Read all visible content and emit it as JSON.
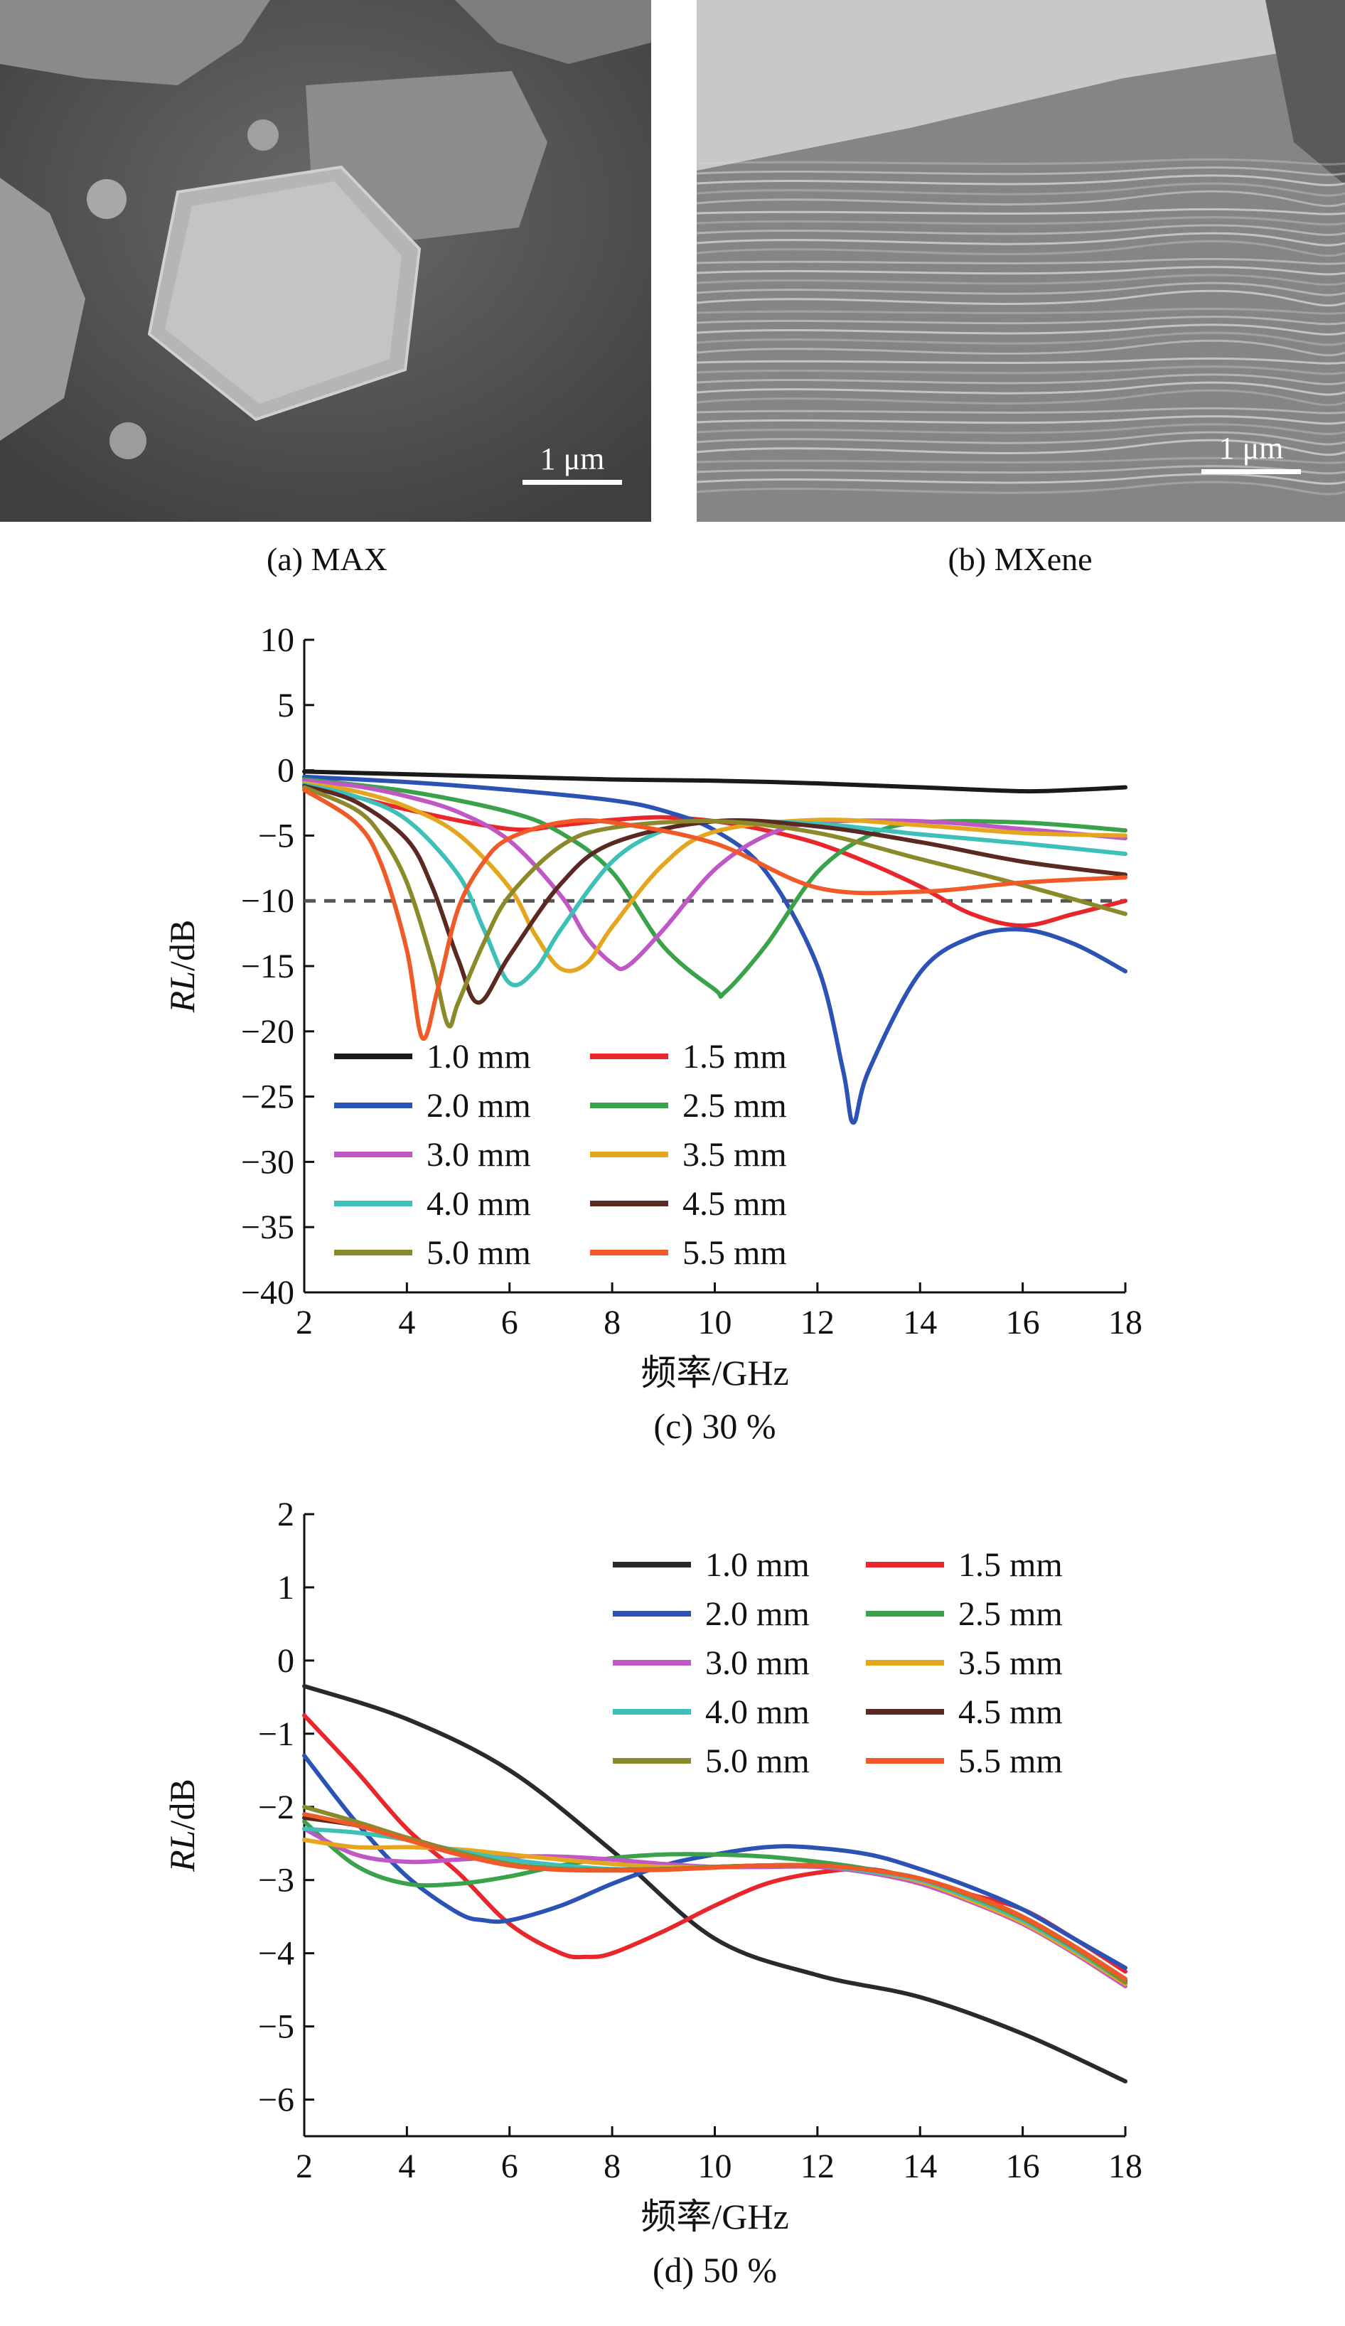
{
  "panels": {
    "a": {
      "caption": "(a) MAX",
      "scale_label": "1 μm"
    },
    "b": {
      "caption": "(b) MXene",
      "scale_label": "1 μm"
    }
  },
  "chart_data": [
    {
      "type": "line",
      "caption": "(c) 30 %",
      "xlabel": "频率/GHz",
      "ylabel_italic": "RL",
      "ylabel_unit": "/dB",
      "xlim": [
        2,
        18
      ],
      "ylim": [
        -40,
        10
      ],
      "xticks": [
        2,
        4,
        6,
        8,
        10,
        12,
        14,
        16,
        18
      ],
      "yticks": [
        10,
        5,
        0,
        -5,
        -10,
        -15,
        -20,
        -25,
        -30,
        -35,
        -40
      ],
      "ytick_labels": [
        "10",
        "5",
        "0",
        "−5",
        "−10",
        "−15",
        "−20",
        "−25",
        "−30",
        "−35",
        "−40"
      ],
      "reference_line": {
        "y": -10,
        "style": "dashed",
        "color": "#555555"
      },
      "legend_position": "bottom-left",
      "series": [
        {
          "name": "1.0 mm",
          "color": "#1a1a1a",
          "x": [
            2,
            4,
            6,
            8,
            10,
            12,
            14,
            16,
            17,
            18
          ],
          "y": [
            -0.1,
            -0.3,
            -0.5,
            -0.7,
            -0.8,
            -1.0,
            -1.3,
            -1.6,
            -1.5,
            -1.3
          ]
        },
        {
          "name": "1.5 mm",
          "color": "#e8262b",
          "x": [
            2,
            4,
            6,
            7,
            8,
            9,
            10,
            11,
            12,
            13,
            14,
            15,
            16,
            17,
            18
          ],
          "y": [
            -1.0,
            -3.0,
            -4.5,
            -4.2,
            -3.8,
            -3.6,
            -3.9,
            -4.6,
            -5.6,
            -7.1,
            -8.9,
            -11.0,
            -11.9,
            -11.0,
            -10.0
          ]
        },
        {
          "name": "2.0 mm",
          "color": "#2b52b5",
          "x": [
            2,
            4,
            6,
            8,
            9,
            10,
            11,
            12,
            12.5,
            12.7,
            13,
            14,
            15,
            16,
            17,
            18
          ],
          "y": [
            -0.5,
            -0.9,
            -1.5,
            -2.3,
            -3.1,
            -4.6,
            -7.8,
            -15.0,
            -23.0,
            -27.0,
            -23.0,
            -15.5,
            -12.8,
            -12.2,
            -13.3,
            -15.4
          ]
        },
        {
          "name": "2.5 mm",
          "color": "#3aa24a",
          "x": [
            2,
            4,
            6,
            7,
            8,
            9,
            10,
            10.2,
            11,
            12,
            13,
            14,
            16,
            18
          ],
          "y": [
            -0.7,
            -1.6,
            -3.2,
            -4.8,
            -7.8,
            -13.5,
            -16.8,
            -17.0,
            -13.4,
            -7.8,
            -5.0,
            -4.0,
            -4.0,
            -4.6
          ]
        },
        {
          "name": "3.0 mm",
          "color": "#bf58c4",
          "x": [
            2,
            3,
            4,
            5,
            6,
            7,
            7.5,
            8,
            8.3,
            9,
            10,
            11,
            12,
            14,
            16,
            18
          ],
          "y": [
            -0.8,
            -1.2,
            -2.0,
            -3.2,
            -5.4,
            -9.6,
            -12.8,
            -14.8,
            -15.0,
            -12.2,
            -7.6,
            -5.0,
            -4.0,
            -3.9,
            -4.5,
            -5.2
          ]
        },
        {
          "name": "3.5 mm",
          "color": "#e5a61f",
          "x": [
            2,
            3,
            4,
            5,
            6,
            6.5,
            7,
            7.5,
            8,
            9,
            10,
            12,
            14,
            16,
            18
          ],
          "y": [
            -1.0,
            -1.6,
            -2.8,
            -4.9,
            -9.0,
            -12.6,
            -15.2,
            -14.8,
            -12.0,
            -7.2,
            -4.7,
            -3.8,
            -4.2,
            -4.8,
            -5.0
          ]
        },
        {
          "name": "4.0 mm",
          "color": "#3cc0b8",
          "x": [
            2,
            3,
            4,
            5,
            5.5,
            6,
            6.5,
            7,
            8,
            9,
            10,
            12,
            14,
            16,
            18
          ],
          "y": [
            -1.1,
            -2.0,
            -3.8,
            -8.0,
            -12.2,
            -16.3,
            -15.3,
            -12.2,
            -7.0,
            -4.6,
            -3.9,
            -4.1,
            -4.9,
            -5.6,
            -6.4
          ]
        },
        {
          "name": "4.5 mm",
          "color": "#5a2a22",
          "x": [
            2,
            3,
            4,
            4.5,
            5,
            5.4,
            6,
            7,
            8,
            10,
            12,
            14,
            16,
            18
          ],
          "y": [
            -1.2,
            -2.4,
            -5.3,
            -9.0,
            -14.5,
            -17.8,
            -14.2,
            -8.7,
            -5.6,
            -3.9,
            -4.3,
            -5.5,
            -7.0,
            -8.0
          ]
        },
        {
          "name": "5.0 mm",
          "color": "#8a8a2b",
          "x": [
            2,
            3,
            3.5,
            4,
            4.5,
            4.8,
            5,
            5.5,
            6,
            7,
            8,
            10,
            12,
            14,
            16,
            18
          ],
          "y": [
            -1.3,
            -3.0,
            -5.0,
            -8.6,
            -14.8,
            -19.5,
            -17.8,
            -13.2,
            -9.6,
            -5.8,
            -4.4,
            -3.9,
            -4.8,
            -6.8,
            -8.8,
            -11.0
          ]
        },
        {
          "name": "5.5 mm",
          "color": "#f05a28",
          "x": [
            2,
            3,
            3.5,
            4,
            4.3,
            4.6,
            5,
            5.5,
            6,
            7,
            8,
            10,
            12,
            14,
            16,
            18
          ],
          "y": [
            -1.5,
            -4.0,
            -7.2,
            -13.8,
            -20.5,
            -16.8,
            -10.6,
            -7.0,
            -5.2,
            -4.0,
            -4.0,
            -5.6,
            -9.0,
            -9.3,
            -8.6,
            -8.2
          ]
        }
      ]
    },
    {
      "type": "line",
      "caption": "(d) 50 %",
      "xlabel": "频率/GHz",
      "ylabel_italic": "RL",
      "ylabel_unit": "/dB",
      "xlim": [
        2,
        18
      ],
      "ylim": [
        -6.5,
        2
      ],
      "xticks": [
        2,
        4,
        6,
        8,
        10,
        12,
        14,
        16,
        18
      ],
      "yticks": [
        2,
        1,
        0,
        -1,
        -2,
        -3,
        -4,
        -5,
        -6
      ],
      "ytick_labels": [
        "2",
        "1",
        "0",
        "−1",
        "−2",
        "−3",
        "−4",
        "−5",
        "−6"
      ],
      "legend_position": "top-right",
      "series": [
        {
          "name": "1.0 mm",
          "color": "#2a2a2a",
          "x": [
            2,
            4,
            6,
            8,
            10,
            12,
            14,
            16,
            18
          ],
          "y": [
            -0.35,
            -0.8,
            -1.5,
            -2.6,
            -3.8,
            -4.3,
            -4.6,
            -5.1,
            -5.75
          ]
        },
        {
          "name": "1.5 mm",
          "color": "#e8262b",
          "x": [
            2,
            3,
            4,
            5,
            6,
            7,
            7.5,
            8,
            9,
            10,
            11,
            12,
            13,
            14,
            15,
            16,
            17,
            18
          ],
          "y": [
            -0.75,
            -1.5,
            -2.3,
            -2.9,
            -3.6,
            -4.0,
            -4.05,
            -4.0,
            -3.7,
            -3.35,
            -3.05,
            -2.9,
            -2.85,
            -3.0,
            -3.2,
            -3.4,
            -3.8,
            -4.25
          ]
        },
        {
          "name": "2.0 mm",
          "color": "#2b52b5",
          "x": [
            2,
            3,
            4,
            5,
            5.5,
            6,
            7,
            8,
            9,
            10,
            11,
            11.8,
            13,
            14,
            15,
            16,
            17,
            18
          ],
          "y": [
            -1.3,
            -2.2,
            -2.95,
            -3.45,
            -3.55,
            -3.55,
            -3.35,
            -3.05,
            -2.8,
            -2.65,
            -2.55,
            -2.55,
            -2.65,
            -2.85,
            -3.1,
            -3.4,
            -3.8,
            -4.2
          ]
        },
        {
          "name": "2.5 mm",
          "color": "#3aa24a",
          "x": [
            2,
            3,
            4,
            5,
            6,
            7,
            8,
            9,
            10,
            11,
            12,
            13,
            14,
            15,
            16,
            17,
            18
          ],
          "y": [
            -2.2,
            -2.8,
            -3.05,
            -3.05,
            -2.95,
            -2.8,
            -2.7,
            -2.65,
            -2.65,
            -2.68,
            -2.75,
            -2.85,
            -3.0,
            -3.25,
            -3.55,
            -3.95,
            -4.4
          ]
        },
        {
          "name": "3.0 mm",
          "color": "#bf58c4",
          "x": [
            2,
            3,
            4,
            5,
            6,
            7,
            8,
            9,
            10,
            11,
            12,
            13,
            14,
            15,
            16,
            17,
            18
          ],
          "y": [
            -2.3,
            -2.65,
            -2.75,
            -2.72,
            -2.68,
            -2.68,
            -2.72,
            -2.78,
            -2.82,
            -2.82,
            -2.82,
            -2.9,
            -3.05,
            -3.3,
            -3.6,
            -4.0,
            -4.45
          ]
        },
        {
          "name": "3.5 mm",
          "color": "#e5a61f",
          "x": [
            2,
            3,
            4,
            5,
            6,
            7,
            8,
            9,
            10,
            11,
            12,
            13,
            14,
            15,
            16,
            17,
            18
          ],
          "y": [
            -2.45,
            -2.55,
            -2.55,
            -2.58,
            -2.65,
            -2.72,
            -2.78,
            -2.82,
            -2.82,
            -2.8,
            -2.8,
            -2.88,
            -3.02,
            -3.28,
            -3.58,
            -3.98,
            -4.42
          ]
        },
        {
          "name": "4.0 mm",
          "color": "#3cc0b8",
          "x": [
            2,
            3,
            4,
            5,
            6,
            7,
            8,
            9,
            10,
            11,
            12,
            13,
            14,
            15,
            16,
            17,
            18
          ],
          "y": [
            -2.3,
            -2.35,
            -2.45,
            -2.6,
            -2.72,
            -2.8,
            -2.85,
            -2.85,
            -2.82,
            -2.8,
            -2.8,
            -2.88,
            -3.0,
            -3.25,
            -3.55,
            -3.95,
            -4.4
          ]
        },
        {
          "name": "4.5 mm",
          "color": "#5a2a22",
          "x": [
            2,
            3,
            4,
            5,
            6,
            7,
            8,
            9,
            10,
            11,
            12,
            13,
            14,
            15,
            16,
            17,
            18
          ],
          "y": [
            -2.15,
            -2.25,
            -2.42,
            -2.62,
            -2.78,
            -2.85,
            -2.86,
            -2.85,
            -2.82,
            -2.8,
            -2.8,
            -2.86,
            -2.98,
            -3.22,
            -3.52,
            -3.92,
            -4.38
          ]
        },
        {
          "name": "5.0 mm",
          "color": "#8a8a2b",
          "x": [
            2,
            3,
            4,
            5,
            6,
            7,
            8,
            9,
            10,
            11,
            12,
            13,
            14,
            15,
            16,
            17,
            18
          ],
          "y": [
            -2.0,
            -2.2,
            -2.42,
            -2.62,
            -2.78,
            -2.85,
            -2.86,
            -2.85,
            -2.82,
            -2.8,
            -2.8,
            -2.86,
            -2.98,
            -3.22,
            -3.52,
            -3.92,
            -4.4
          ]
        },
        {
          "name": "5.5 mm",
          "color": "#f05a28",
          "x": [
            2,
            3,
            4,
            5,
            6,
            7,
            8,
            9,
            10,
            11,
            12,
            13,
            14,
            15,
            16,
            17,
            18
          ],
          "y": [
            -2.1,
            -2.25,
            -2.45,
            -2.65,
            -2.8,
            -2.86,
            -2.87,
            -2.86,
            -2.83,
            -2.8,
            -2.8,
            -2.86,
            -2.98,
            -3.2,
            -3.5,
            -3.9,
            -4.35
          ]
        }
      ]
    }
  ]
}
